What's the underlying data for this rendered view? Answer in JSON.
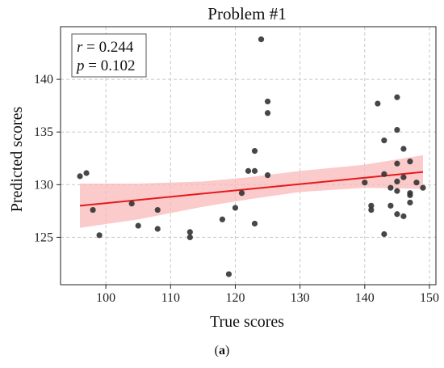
{
  "chart_data": {
    "type": "scatter",
    "title": "Problem #1",
    "xlabel": "True scores",
    "ylabel": "Predicted scores",
    "xlim": [
      93,
      151
    ],
    "ylim": [
      120.5,
      145
    ],
    "xticks": [
      100,
      110,
      120,
      130,
      140,
      150
    ],
    "yticks": [
      125,
      130,
      135,
      140
    ],
    "grid": true,
    "stats": {
      "r_label": "r",
      "r_value": "0.244",
      "p_label": "p",
      "p_value": "0.102"
    },
    "colors": {
      "points": "#333333",
      "fit_line": "#e31a1c",
      "confidence_band": "#f9b8b8"
    },
    "fit_line": {
      "x": [
        96,
        149
      ],
      "y": [
        128.0,
        131.2
      ]
    },
    "confidence_band": {
      "x": [
        96,
        105,
        115,
        122,
        130,
        140,
        149
      ],
      "upper": [
        130.1,
        130.1,
        130.3,
        130.7,
        131.3,
        131.9,
        132.8
      ],
      "lower": [
        125.9,
        126.7,
        127.9,
        128.6,
        129.3,
        129.7,
        129.6
      ]
    },
    "points": [
      {
        "x": 96,
        "y": 130.8
      },
      {
        "x": 97,
        "y": 131.1
      },
      {
        "x": 98,
        "y": 127.6
      },
      {
        "x": 99,
        "y": 125.2
      },
      {
        "x": 104,
        "y": 128.2
      },
      {
        "x": 105,
        "y": 126.1
      },
      {
        "x": 108,
        "y": 127.6
      },
      {
        "x": 108,
        "y": 125.8
      },
      {
        "x": 113,
        "y": 125.5
      },
      {
        "x": 113,
        "y": 125.0
      },
      {
        "x": 118,
        "y": 126.7
      },
      {
        "x": 119,
        "y": 121.5
      },
      {
        "x": 120,
        "y": 127.8
      },
      {
        "x": 121,
        "y": 129.2
      },
      {
        "x": 122,
        "y": 131.3
      },
      {
        "x": 123,
        "y": 133.2
      },
      {
        "x": 123,
        "y": 131.3
      },
      {
        "x": 123,
        "y": 126.3
      },
      {
        "x": 124,
        "y": 143.8
      },
      {
        "x": 125,
        "y": 137.9
      },
      {
        "x": 125,
        "y": 136.8
      },
      {
        "x": 125,
        "y": 130.9
      },
      {
        "x": 140,
        "y": 130.2
      },
      {
        "x": 141,
        "y": 128.0
      },
      {
        "x": 141,
        "y": 127.6
      },
      {
        "x": 142,
        "y": 137.7
      },
      {
        "x": 143,
        "y": 134.2
      },
      {
        "x": 143,
        "y": 131.0
      },
      {
        "x": 143,
        "y": 125.3
      },
      {
        "x": 144,
        "y": 129.7
      },
      {
        "x": 144,
        "y": 128.0
      },
      {
        "x": 145,
        "y": 138.3
      },
      {
        "x": 145,
        "y": 135.2
      },
      {
        "x": 145,
        "y": 132.0
      },
      {
        "x": 145,
        "y": 130.3
      },
      {
        "x": 145,
        "y": 129.4
      },
      {
        "x": 145,
        "y": 127.2
      },
      {
        "x": 146,
        "y": 133.4
      },
      {
        "x": 146,
        "y": 130.7
      },
      {
        "x": 146,
        "y": 127.0
      },
      {
        "x": 147,
        "y": 132.2
      },
      {
        "x": 147,
        "y": 129.2
      },
      {
        "x": 147,
        "y": 129.0
      },
      {
        "x": 147,
        "y": 128.3
      },
      {
        "x": 148,
        "y": 130.2
      },
      {
        "x": 149,
        "y": 129.7
      }
    ]
  },
  "caption": {
    "open": "(",
    "letter": "a",
    "close": ")"
  }
}
